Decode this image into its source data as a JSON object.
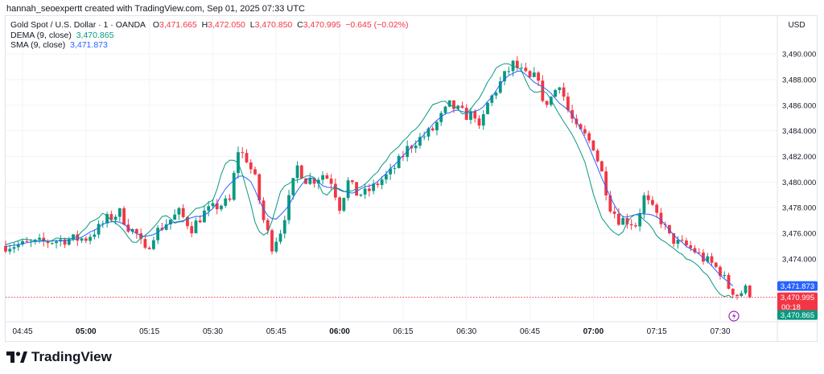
{
  "header": {
    "credit": "hannah_seoexpertt created with TradingView.com, Sep 01, 2025 07:33 UTC"
  },
  "legend": {
    "symbol": "Gold Spot / U.S. Dollar · 1 · OANDA",
    "o_label": "O",
    "o_value": "3,471.665",
    "h_label": "H",
    "h_value": "3,472.050",
    "l_label": "L",
    "l_value": "3,470.850",
    "c_label": "C",
    "c_value": "3,470.995",
    "change": "−0.645 (−0.02%)",
    "dema_label": "DEMA (9, close)",
    "dema_value": "3,470.865",
    "sma_label": "SMA (9, close)",
    "sma_value": "3,471.873"
  },
  "footer": {
    "brand": "TradingView"
  },
  "chart_data": {
    "type": "candlestick",
    "currency": "USD",
    "y_ticks": [
      3474,
      3476,
      3478,
      3480,
      3482,
      3484,
      3486,
      3488,
      3490
    ],
    "y_tick_labels": [
      "3,474.000",
      "3,476.000",
      "3,478.000",
      "3,480.000",
      "3,482.000",
      "3,484.000",
      "3,486.000",
      "3,488.000",
      "3,490.000"
    ],
    "ylim": [
      3469.9,
      3490.7
    ],
    "x_ticks": [
      {
        "time": "04:45",
        "minute": -75,
        "bold": false
      },
      {
        "time": "05:00",
        "minute": -60,
        "bold": true
      },
      {
        "time": "05:15",
        "minute": -45,
        "bold": false
      },
      {
        "time": "05:30",
        "minute": -30,
        "bold": false
      },
      {
        "time": "05:45",
        "minute": -15,
        "bold": false
      },
      {
        "time": "06:00",
        "minute": 0,
        "bold": true
      },
      {
        "time": "06:15",
        "minute": 15,
        "bold": false
      },
      {
        "time": "06:30",
        "minute": 30,
        "bold": false
      },
      {
        "time": "06:45",
        "minute": 45,
        "bold": false
      },
      {
        "time": "07:00",
        "minute": 60,
        "bold": true
      },
      {
        "time": "07:15",
        "minute": 75,
        "bold": false
      },
      {
        "time": "07:30",
        "minute": 90,
        "bold": false
      }
    ],
    "xlim_minutes": [
      -78,
      112
    ],
    "close_path": [
      [
        -80,
        3475.0
      ],
      [
        -75,
        3475.1
      ],
      [
        -70,
        3475.3
      ],
      [
        -65,
        3475.5
      ],
      [
        -60,
        3475.6
      ],
      [
        -57,
        3476.4
      ],
      [
        -55,
        3477.1
      ],
      [
        -52,
        3477.6
      ],
      [
        -50,
        3476.5
      ],
      [
        -48,
        3475.9
      ],
      [
        -46,
        3474.5
      ],
      [
        -44,
        3475.9
      ],
      [
        -41,
        3476.8
      ],
      [
        -38,
        3477.6
      ],
      [
        -35,
        3476.4
      ],
      [
        -32,
        3477.6
      ],
      [
        -29,
        3478.1
      ],
      [
        -26,
        3478.5
      ],
      [
        -24,
        3482.5
      ],
      [
        -22,
        3481.8
      ],
      [
        -20,
        3480.2
      ],
      [
        -18,
        3477.0
      ],
      [
        -16,
        3475.0
      ],
      [
        -14,
        3476.2
      ],
      [
        -12,
        3478.6
      ],
      [
        -10,
        3481.2
      ],
      [
        -8,
        3480.2
      ],
      [
        -6,
        3480.2
      ],
      [
        -4,
        3480.6
      ],
      [
        -2,
        3480.1
      ],
      [
        0,
        3478.1
      ],
      [
        2,
        3480.0
      ],
      [
        4,
        3479.1
      ],
      [
        6,
        3479.1
      ],
      [
        8,
        3479.6
      ],
      [
        10,
        3480.2
      ],
      [
        12,
        3480.7
      ],
      [
        14,
        3481.6
      ],
      [
        16,
        3482.6
      ],
      [
        18,
        3483.2
      ],
      [
        20,
        3483.6
      ],
      [
        22,
        3484.1
      ],
      [
        24,
        3485.1
      ],
      [
        26,
        3486.0
      ],
      [
        28,
        3485.6
      ],
      [
        30,
        3485.2
      ],
      [
        32,
        3485.3
      ],
      [
        33,
        3484.0
      ],
      [
        35,
        3486.1
      ],
      [
        37,
        3487.2
      ],
      [
        39,
        3488.3
      ],
      [
        41,
        3489.2
      ],
      [
        43,
        3488.6
      ],
      [
        45,
        3488.0
      ],
      [
        47,
        3488.3
      ],
      [
        48,
        3486.0
      ],
      [
        50,
        3486.6
      ],
      [
        52,
        3487.8
      ],
      [
        54,
        3485.6
      ],
      [
        56,
        3484.1
      ],
      [
        58,
        3483.6
      ],
      [
        60,
        3482.8
      ],
      [
        62,
        3480.7
      ],
      [
        64,
        3478.1
      ],
      [
        66,
        3477.1
      ],
      [
        68,
        3477.0
      ],
      [
        70,
        3476.7
      ],
      [
        72,
        3478.8
      ],
      [
        74,
        3477.8
      ],
      [
        76,
        3477.0
      ],
      [
        78,
        3475.7
      ],
      [
        80,
        3475.2
      ],
      [
        82,
        3475.0
      ],
      [
        84,
        3474.6
      ],
      [
        86,
        3474.0
      ],
      [
        88,
        3473.6
      ],
      [
        90,
        3473.0
      ],
      [
        92,
        3471.8
      ],
      [
        94,
        3471.2
      ],
      [
        96,
        3471.6
      ],
      [
        97,
        3470.995
      ]
    ],
    "series": [
      {
        "name": "DEMA (9, close)",
        "color": "#089981"
      },
      {
        "name": "SMA (9, close)",
        "color": "#2962ff"
      }
    ],
    "last_price": {
      "value": 3470.995,
      "label": "3,470.995",
      "countdown": "00:18",
      "color": "#f23645"
    },
    "sma_last": {
      "value": 3471.873,
      "label": "3,471.873",
      "color": "#2962ff"
    },
    "dema_last": {
      "value": 3470.865,
      "label": "3,470.865",
      "color": "#089981"
    },
    "colors": {
      "up": "#089981",
      "down": "#f23645",
      "grid": "#f0f3fa",
      "axis_text": "#131722",
      "border": "#e0e3eb"
    }
  }
}
